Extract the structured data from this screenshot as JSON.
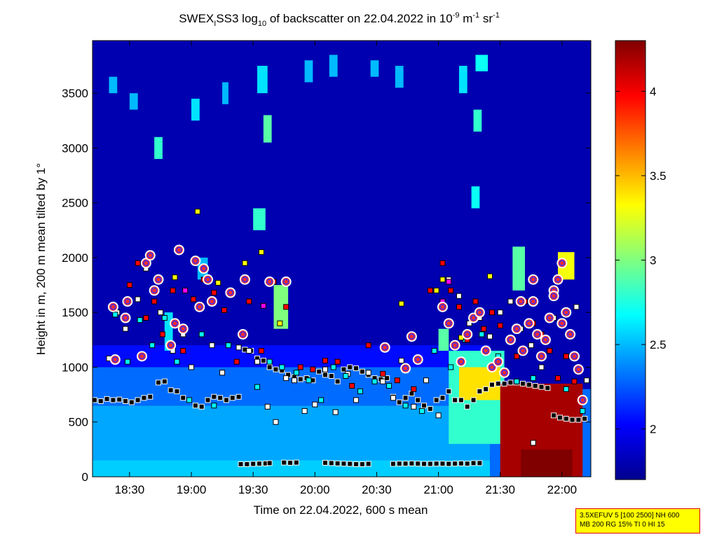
{
  "chart_data": {
    "type": "heatmap",
    "title": {
      "prefix": "SWEX",
      "prefix_sub": "I",
      "main": "SS3 log",
      "main_sub": "10",
      "mid": " of backscatter on 22.04.2022 in 10",
      "sup1": "-9",
      "mid2": " m",
      "sup2": "-1",
      "mid3": " sr",
      "sup3": "-1"
    },
    "xlabel": "Time on 22.04.2022, 600 s mean",
    "ylabel": "Height in m, 200 m mean tilted by 1°",
    "x_ticks": [
      "18:30",
      "19:00",
      "19:30",
      "20:00",
      "20:30",
      "21:00",
      "21:30",
      "22:00"
    ],
    "x_tick_minutes": [
      1110,
      1140,
      1170,
      1200,
      1230,
      1260,
      1290,
      1320
    ],
    "xlim_minutes": [
      1092,
      1334
    ],
    "y_ticks": [
      0,
      500,
      1000,
      1500,
      2000,
      2500,
      3000,
      3500
    ],
    "ylim": [
      0,
      3980
    ],
    "colorbar": {
      "ticks": [
        2,
        2.5,
        3,
        3.5,
        4
      ],
      "range": [
        1.7,
        4.3
      ]
    },
    "cells": [
      {
        "t0": 1092,
        "t1": 1334,
        "z0": 0,
        "z1": 3980,
        "v": 1.8
      },
      {
        "t0": 1092,
        "t1": 1285,
        "z0": 0,
        "z1": 150,
        "v": 2.55
      },
      {
        "t0": 1092,
        "t1": 1285,
        "z0": 150,
        "z1": 650,
        "v": 2.45
      },
      {
        "t0": 1092,
        "t1": 1285,
        "z0": 650,
        "z1": 1000,
        "v": 2.3
      },
      {
        "t0": 1092,
        "t1": 1285,
        "z0": 1000,
        "z1": 1200,
        "v": 2.05
      },
      {
        "t0": 1285,
        "t1": 1334,
        "z0": 0,
        "z1": 800,
        "v": 2.3
      },
      {
        "t0": 1265,
        "t1": 1292,
        "z0": 300,
        "z1": 1150,
        "v": 2.8
      },
      {
        "t0": 1270,
        "t1": 1290,
        "z0": 700,
        "z1": 1000,
        "v": 3.4
      },
      {
        "t0": 1290,
        "t1": 1330,
        "z0": 0,
        "z1": 850,
        "v": 4.2
      },
      {
        "t0": 1300,
        "t1": 1325,
        "z0": 0,
        "z1": 250,
        "v": 4.3
      },
      {
        "t0": 1296,
        "t1": 1302,
        "z0": 1700,
        "z1": 2100,
        "v": 2.9
      },
      {
        "t0": 1318,
        "t1": 1326,
        "z0": 1800,
        "z1": 2050,
        "v": 3.3
      },
      {
        "t0": 1143,
        "t1": 1148,
        "z0": 1800,
        "z1": 2000,
        "v": 2.5
      },
      {
        "t0": 1180,
        "t1": 1187,
        "z0": 1350,
        "z1": 1750,
        "v": 3.0
      },
      {
        "t0": 1260,
        "t1": 1265,
        "z0": 1150,
        "z1": 1350,
        "v": 2.9
      },
      {
        "t0": 1127,
        "t1": 1131,
        "z0": 1150,
        "z1": 1500,
        "v": 2.6
      },
      {
        "t0": 1100,
        "t1": 1104,
        "z0": 3500,
        "z1": 3650,
        "v": 2.5
      },
      {
        "t0": 1110,
        "t1": 1114,
        "z0": 3350,
        "z1": 3500,
        "v": 2.5
      },
      {
        "t0": 1122,
        "t1": 1126,
        "z0": 2900,
        "z1": 3100,
        "v": 2.8
      },
      {
        "t0": 1140,
        "t1": 1144,
        "z0": 3250,
        "z1": 3450,
        "v": 2.6
      },
      {
        "t0": 1155,
        "t1": 1158,
        "z0": 3400,
        "z1": 3600,
        "v": 2.5
      },
      {
        "t0": 1170,
        "t1": 1176,
        "z0": 2250,
        "z1": 2450,
        "v": 2.8
      },
      {
        "t0": 1172,
        "t1": 1177,
        "z0": 3500,
        "z1": 3750,
        "v": 2.6
      },
      {
        "t0": 1175,
        "t1": 1179,
        "z0": 3050,
        "z1": 3300,
        "v": 2.9
      },
      {
        "t0": 1195,
        "t1": 1199,
        "z0": 3600,
        "z1": 3800,
        "v": 2.5
      },
      {
        "t0": 1207,
        "t1": 1211,
        "z0": 3650,
        "z1": 3850,
        "v": 2.5
      },
      {
        "t0": 1227,
        "t1": 1231,
        "z0": 3650,
        "z1": 3800,
        "v": 2.5
      },
      {
        "t0": 1239,
        "t1": 1243,
        "z0": 3550,
        "z1": 3750,
        "v": 2.5
      },
      {
        "t0": 1270,
        "t1": 1274,
        "z0": 3500,
        "z1": 3750,
        "v": 2.6
      },
      {
        "t0": 1278,
        "t1": 1284,
        "z0": 3700,
        "z1": 3850,
        "v": 2.7
      },
      {
        "t0": 1277,
        "t1": 1281,
        "z0": 3150,
        "z1": 3350,
        "v": 2.8
      },
      {
        "t0": 1276,
        "t1": 1280,
        "z0": 2450,
        "z1": 2650,
        "v": 2.7
      }
    ],
    "series": [
      {
        "name": "cloud_base_black",
        "marker": "square",
        "color": "#000000",
        "x": [
          1093,
          1096,
          1099,
          1102,
          1105,
          1108,
          1111,
          1114,
          1117,
          1120,
          1124,
          1127,
          1130,
          1133,
          1136,
          1139,
          1142,
          1145,
          1148,
          1151,
          1154,
          1157,
          1160,
          1163,
          1166,
          1169,
          1172,
          1175,
          1178,
          1181,
          1184,
          1187,
          1190,
          1193,
          1196,
          1199,
          1202,
          1205,
          1208,
          1211,
          1214,
          1217,
          1220,
          1223,
          1226,
          1229,
          1232,
          1235,
          1238,
          1241,
          1244,
          1247,
          1250,
          1253,
          1256,
          1259,
          1262,
          1265,
          1268,
          1271,
          1274,
          1277,
          1280,
          1283,
          1286,
          1289,
          1292,
          1295,
          1298,
          1301,
          1304,
          1307,
          1310,
          1313,
          1316,
          1319,
          1322,
          1325,
          1328,
          1331
        ],
        "y": [
          700,
          690,
          710,
          700,
          705,
          690,
          680,
          700,
          720,
          730,
          860,
          870,
          790,
          780,
          720,
          700,
          650,
          640,
          700,
          730,
          720,
          700,
          720,
          730,
          1160,
          1150,
          1080,
          1060,
          1000,
          980,
          970,
          930,
          910,
          890,
          900,
          880,
          960,
          930,
          920,
          870,
          980,
          1000,
          990,
          960,
          930,
          900,
          890,
          900,
          730,
          680,
          720,
          760,
          700,
          650,
          620,
          700,
          720,
          780,
          700,
          700,
          640,
          700,
          780,
          800,
          840,
          850,
          850,
          860,
          860,
          850,
          840,
          830,
          820,
          810,
          560,
          540,
          530,
          520,
          520,
          530
        ]
      },
      {
        "name": "surface_black",
        "marker": "square",
        "color": "#000000",
        "x": [
          1164,
          1167,
          1170,
          1173,
          1176,
          1178,
          1185,
          1188,
          1191,
          1205,
          1208,
          1211,
          1214,
          1217,
          1220,
          1223,
          1226,
          1238,
          1241,
          1244,
          1247,
          1250,
          1253,
          1256,
          1259,
          1262,
          1265,
          1268,
          1271,
          1274,
          1277,
          1280
        ],
        "y": [
          115,
          115,
          118,
          120,
          122,
          125,
          130,
          128,
          130,
          128,
          125,
          122,
          120,
          118,
          115,
          115,
          118,
          118,
          120,
          120,
          122,
          120,
          118,
          118,
          120,
          120,
          118,
          120,
          122,
          120,
          125,
          125
        ]
      },
      {
        "name": "white",
        "marker": "square",
        "color": "#ffffff",
        "x": [
          1100,
          1104,
          1108,
          1114,
          1118,
          1125,
          1131,
          1136,
          1140,
          1146,
          1150,
          1155,
          1163,
          1168,
          1172,
          1177,
          1181,
          1186,
          1190,
          1195,
          1200,
          1205,
          1210,
          1216,
          1220,
          1226,
          1233,
          1238,
          1242,
          1248,
          1254,
          1260,
          1265,
          1270,
          1275,
          1280,
          1285,
          1290,
          1295,
          1300,
          1305,
          1310,
          1316,
          1322,
          1327,
          1332,
          1306,
          1312
        ],
        "y": [
          1080,
          1500,
          1350,
          1620,
          1900,
          1500,
          1150,
          1300,
          1000,
          1900,
          1200,
          950,
          1180,
          1150,
          1050,
          640,
          500,
          900,
          880,
          600,
          660,
          980,
          590,
          940,
          700,
          950,
          870,
          720,
          1060,
          640,
          880,
          560,
          1800,
          1650,
          1400,
          1450,
          1280,
          1500,
          1600,
          1350,
          1200,
          1000,
          1450,
          1100,
          1550,
          880,
          310,
          1250
        ]
      },
      {
        "name": "cyan",
        "marker": "square",
        "color": "#00ffff",
        "x": [
          1103,
          1109,
          1115,
          1121,
          1127,
          1133,
          1139,
          1145,
          1151,
          1158,
          1166,
          1172,
          1178,
          1184,
          1191,
          1197,
          1203,
          1209,
          1215,
          1222,
          1229,
          1236,
          1244,
          1252,
          1258,
          1266,
          1273,
          1281,
          1289,
          1298,
          1306,
          1314,
          1322,
          1330
        ],
        "y": [
          1480,
          1050,
          1430,
          1200,
          1450,
          1050,
          700,
          1300,
          650,
          1200,
          1300,
          820,
          1050,
          1000,
          950,
          880,
          700,
          1000,
          920,
          780,
          870,
          830,
          650,
          600,
          1150,
          1000,
          1250,
          1300,
          1100,
          870,
          900,
          1150,
          800,
          600
        ]
      },
      {
        "name": "red",
        "marker": "square",
        "color": "#ff0000",
        "x": [
          1110,
          1114,
          1118,
          1122,
          1126,
          1131,
          1136,
          1141,
          1146,
          1151,
          1156,
          1162,
          1168,
          1174,
          1180,
          1186,
          1193,
          1199,
          1205,
          1211,
          1218,
          1226,
          1233,
          1240,
          1248,
          1256,
          1262,
          1266,
          1270,
          1274,
          1278,
          1282,
          1286,
          1290,
          1294,
          1298,
          1302,
          1306,
          1310,
          1314,
          1318,
          1322,
          1326
        ],
        "y": [
          1750,
          1950,
          1450,
          1600,
          1300,
          1700,
          1150,
          1620,
          1800,
          1680,
          1520,
          1050,
          1600,
          1150,
          1780,
          1550,
          1000,
          980,
          1060,
          1050,
          830,
          1200,
          940,
          880,
          800,
          1700,
          1950,
          1700,
          1550,
          1250,
          1600,
          1350,
          1500,
          1380,
          1250,
          1100,
          1600,
          1400,
          1300,
          1150,
          900,
          1100,
          870
        ]
      },
      {
        "name": "yellow",
        "marker": "square",
        "color": "#ffff00",
        "x": [
          1132,
          1143,
          1153,
          1166,
          1174,
          1183,
          1242,
          1259,
          1262,
          1271,
          1285
        ],
        "y": [
          1820,
          2420,
          1770,
          1950,
          2050,
          1400,
          1580,
          1700,
          1800,
          1270,
          1830
        ]
      },
      {
        "name": "magenta",
        "marker": "square",
        "color": "#ff00ff",
        "x": [
          1137,
          1175,
          1262,
          1265
        ],
        "y": [
          1700,
          1560,
          1600,
          1780
        ]
      },
      {
        "name": "rings",
        "marker": "circle",
        "color": "#ff0000",
        "x": [
          1102,
          1103,
          1108,
          1109,
          1116,
          1118,
          1120,
          1122,
          1124,
          1130,
          1132,
          1134,
          1136,
          1142,
          1144,
          1146,
          1148,
          1150,
          1159,
          1165,
          1166,
          1178,
          1186,
          1234,
          1244,
          1247,
          1250,
          1262,
          1265,
          1268,
          1271,
          1274,
          1277,
          1280,
          1283,
          1286,
          1289,
          1292,
          1295,
          1298,
          1301,
          1304,
          1306,
          1308,
          1310,
          1312,
          1314,
          1316,
          1318,
          1320,
          1322,
          1324,
          1326,
          1328,
          1330,
          1300,
          1306,
          1316,
          1320
        ],
        "y": [
          1550,
          1070,
          1450,
          1600,
          1100,
          1950,
          2020,
          1700,
          1800,
          1200,
          1400,
          2070,
          1350,
          1970,
          1550,
          1900,
          1800,
          1600,
          1680,
          1300,
          1800,
          1780,
          1780,
          1180,
          990,
          1280,
          1070,
          1550,
          1400,
          1200,
          1050,
          1300,
          1450,
          1500,
          1150,
          1000,
          1050,
          950,
          1250,
          1350,
          1150,
          1400,
          1600,
          1300,
          1100,
          1250,
          1450,
          1700,
          1800,
          1950,
          1500,
          1300,
          1100,
          980,
          700,
          1600,
          1800,
          1650,
          1400
        ]
      }
    ]
  },
  "info_box": {
    "line1": "3.5XEFUV 5 [100 2500] NH 600",
    "line2": "MB 200 RG 15% TI 0 HI 15"
  }
}
